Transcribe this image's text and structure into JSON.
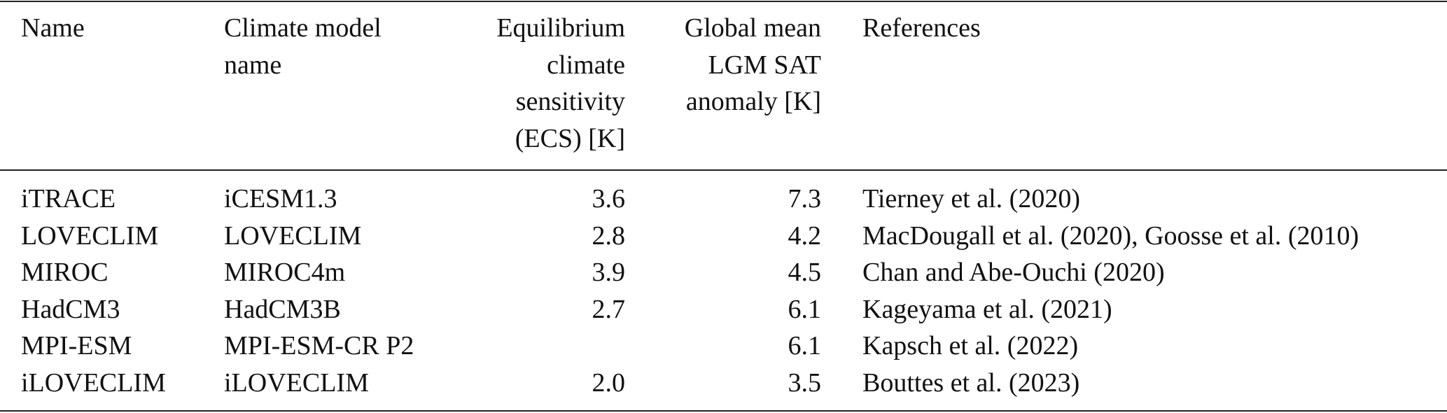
{
  "table": {
    "header": [
      [
        "Name"
      ],
      [
        "Climate model",
        "name"
      ],
      [
        "Equilibrium",
        "climate",
        "sensitivity",
        "(ECS) [K]"
      ],
      [
        "Global mean",
        "LGM SAT",
        "anomaly [K]"
      ],
      [
        "References"
      ]
    ],
    "rows": [
      [
        "iTRACE",
        "iCESM1.3",
        "3.6",
        "7.3",
        "Tierney et al. (2020)"
      ],
      [
        "LOVECLIM",
        "LOVECLIM",
        "2.8",
        "4.2",
        "MacDougall et al. (2020), Goosse et al. (2010)"
      ],
      [
        "MIROC",
        "MIROC4m",
        "3.9",
        "4.5",
        "Chan and Abe-Ouchi (2020)"
      ],
      [
        "HadCM3",
        "HadCM3B",
        "2.7",
        "6.1",
        "Kageyama et al. (2021)"
      ],
      [
        "MPI-ESM",
        "MPI-ESM-CR P2",
        null,
        "6.1",
        "Kapsch et al. (2022)"
      ],
      [
        "iLOVECLIM",
        "iLOVECLIM",
        "2.0",
        "3.5",
        "Bouttes et al. (2023)"
      ]
    ]
  }
}
